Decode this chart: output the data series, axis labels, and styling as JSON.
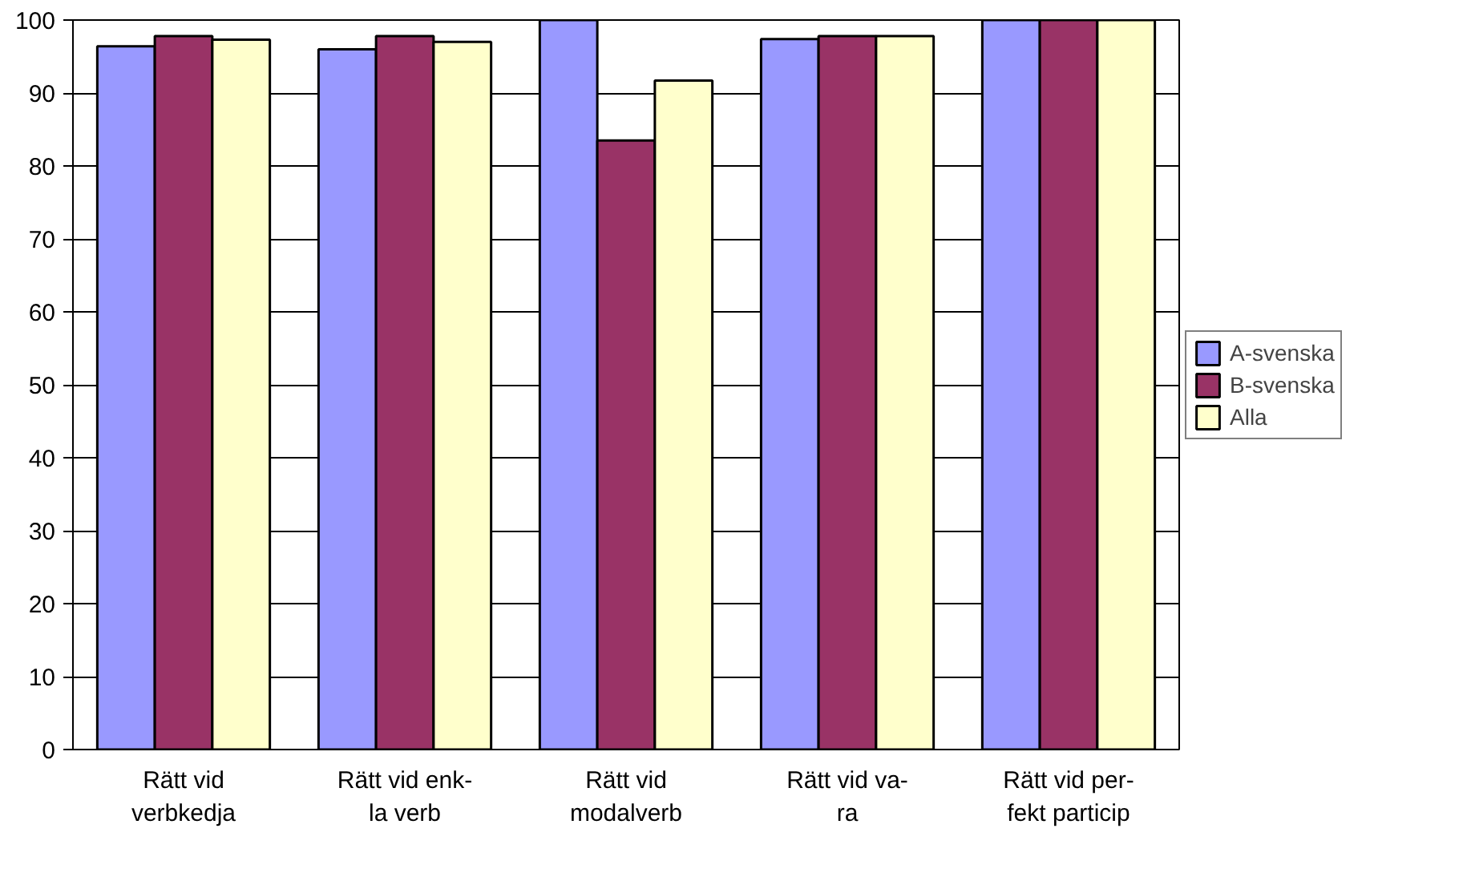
{
  "chart_data": {
    "type": "bar",
    "categories": [
      "Rätt vid\nverbkedja",
      "Rätt vid enk-\nla verb",
      "Rätt vid\nmodalverb",
      "Rätt vid va-\nra",
      "Rätt vid per-\nfekt particip"
    ],
    "series": [
      {
        "name": "A-svenska",
        "color": "#9999ff",
        "values": [
          96.4,
          96.0,
          100,
          97.4,
          100
        ]
      },
      {
        "name": "B-svenska",
        "color": "#993366",
        "values": [
          97.8,
          97.8,
          83.5,
          97.8,
          100
        ]
      },
      {
        "name": "Alla",
        "color": "#ffffcc",
        "values": [
          97.3,
          97.0,
          91.7,
          97.8,
          100
        ]
      }
    ],
    "ylim": [
      0,
      100
    ],
    "yticks": [
      0,
      10,
      20,
      30,
      40,
      50,
      60,
      70,
      80,
      90,
      100
    ],
    "grid": "y",
    "legend": "right"
  }
}
